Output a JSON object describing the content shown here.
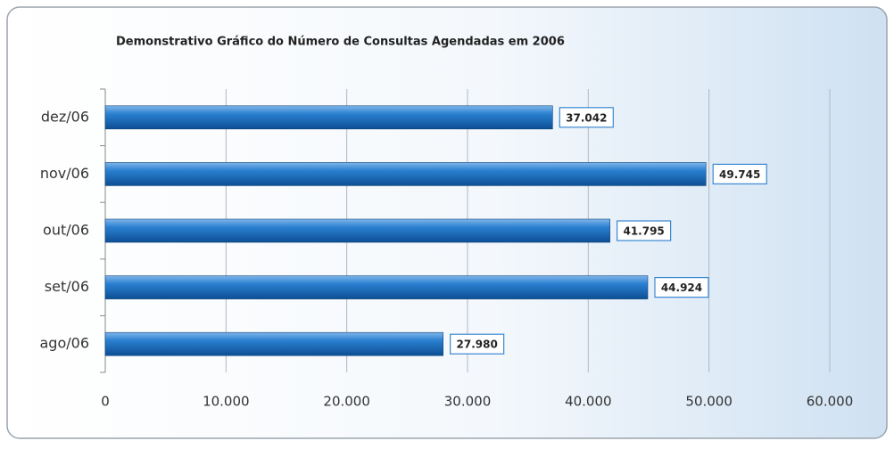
{
  "chart_data": {
    "type": "barh",
    "title": "Demonstrativo Gráfico do Número de Consultas Agendadas em 2006",
    "categories": [
      "ago/06",
      "set/06",
      "out/06",
      "nov/06",
      "dez/06"
    ],
    "values": [
      27980,
      44924,
      41795,
      49745,
      37042
    ],
    "value_labels": [
      "27.980",
      "44.924",
      "41.795",
      "49.745",
      "37.042"
    ],
    "color": "#1f6fbf",
    "xlim": [
      0,
      60000
    ],
    "xticks": [
      0,
      {
        "value": 10000,
        "label": "10.000"
      },
      {
        "value": 20000,
        "label": "20.000"
      },
      {
        "value": 30000,
        "label": "30.000"
      },
      {
        "value": 40000,
        "label": "40.000"
      },
      {
        "value": 50000,
        "label": "50.000"
      },
      {
        "value": 60000,
        "label": "60.000"
      }
    ],
    "grid": true
  }
}
